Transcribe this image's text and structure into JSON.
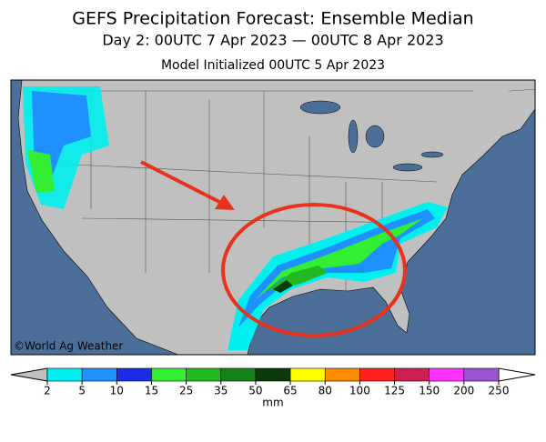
{
  "header": {
    "title": "GEFS Precipitation Forecast: Ensemble Median",
    "subtitle": "Day 2: 00UTC 7 Apr 2023 — 00UTC 8 Apr 2023",
    "init": "Model Initialized 00UTC 5 Apr 2023"
  },
  "map": {
    "credit": "©World Ag Weather"
  },
  "colorbar": {
    "bounds": [
      2,
      5,
      10,
      15,
      25,
      35,
      50,
      65,
      80,
      100,
      125,
      150,
      200,
      250
    ],
    "colors": [
      "#00f0f0",
      "#1e90ff",
      "#1a2ee8",
      "#33ee33",
      "#22b822",
      "#168216",
      "#0a3a0a",
      "#ffff00",
      "#ff8c00",
      "#ff2020",
      "#cc2050",
      "#ff33ff",
      "#9a55d0"
    ],
    "unit": "mm"
  }
}
